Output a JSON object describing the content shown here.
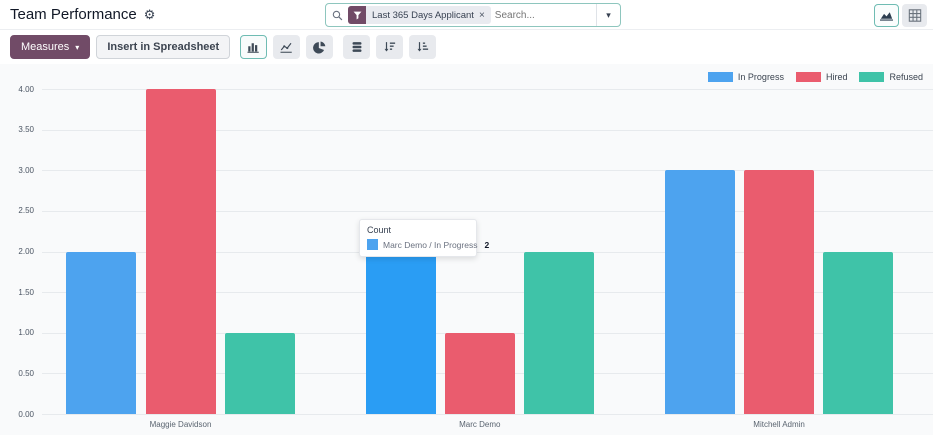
{
  "page": {
    "title": "Team Performance"
  },
  "search": {
    "facet": "Last 365 Days Applicant",
    "placeholder": "Search...",
    "icons": [
      "search-icon",
      "filter-funnel-icon",
      "remove-facet-icon",
      "dropdown-caret-icon"
    ]
  },
  "view_switcher": {
    "icons": [
      "graph-view-icon",
      "pivot-view-icon"
    ],
    "active": "graph"
  },
  "toolbar": {
    "measures": "Measures",
    "insert_spreadsheet": "Insert in Spreadsheet",
    "icons": [
      "bar-chart-icon",
      "line-chart-icon",
      "pie-chart-icon",
      "stacked-icon",
      "sort-desc-icon",
      "sort-asc-icon"
    ],
    "active_chart_type": "bar"
  },
  "tooltip": {
    "title": "Count",
    "label": "Marc Demo / In Progress",
    "value": "2"
  },
  "colors": {
    "accent_purple": "#714B67",
    "select_teal": "#6fbcb3",
    "in_progress": "#4da3ef",
    "in_progress_hover": "#2a9df4",
    "hired": "#ea5c6e",
    "refused": "#3fc3a8",
    "gridline": "#e7eaed",
    "chart_bg": "#f9fafb"
  },
  "chart_data": {
    "type": "bar",
    "title": "",
    "xlabel": "",
    "ylabel": "Count",
    "categories": [
      "Maggie Davidson",
      "Marc Demo",
      "Mitchell Admin"
    ],
    "series": [
      {
        "name": "In Progress",
        "color": "#4da3ef",
        "values": [
          2,
          2,
          3
        ]
      },
      {
        "name": "Hired",
        "color": "#ea5c6e",
        "values": [
          4,
          1,
          3
        ]
      },
      {
        "name": "Refused",
        "color": "#3fc3a8",
        "values": [
          1,
          2,
          2
        ]
      }
    ],
    "ylim": [
      0,
      4
    ],
    "ytick_step": 0.5,
    "yticks": [
      "0.00",
      "0.50",
      "1.00",
      "1.50",
      "2.00",
      "2.50",
      "3.00",
      "3.50",
      "4.00"
    ],
    "grid": "horizontal",
    "legend_position": "top-right",
    "highlight": {
      "category": "Marc Demo",
      "series": "In Progress",
      "hover_color": "#2a9df4"
    }
  }
}
